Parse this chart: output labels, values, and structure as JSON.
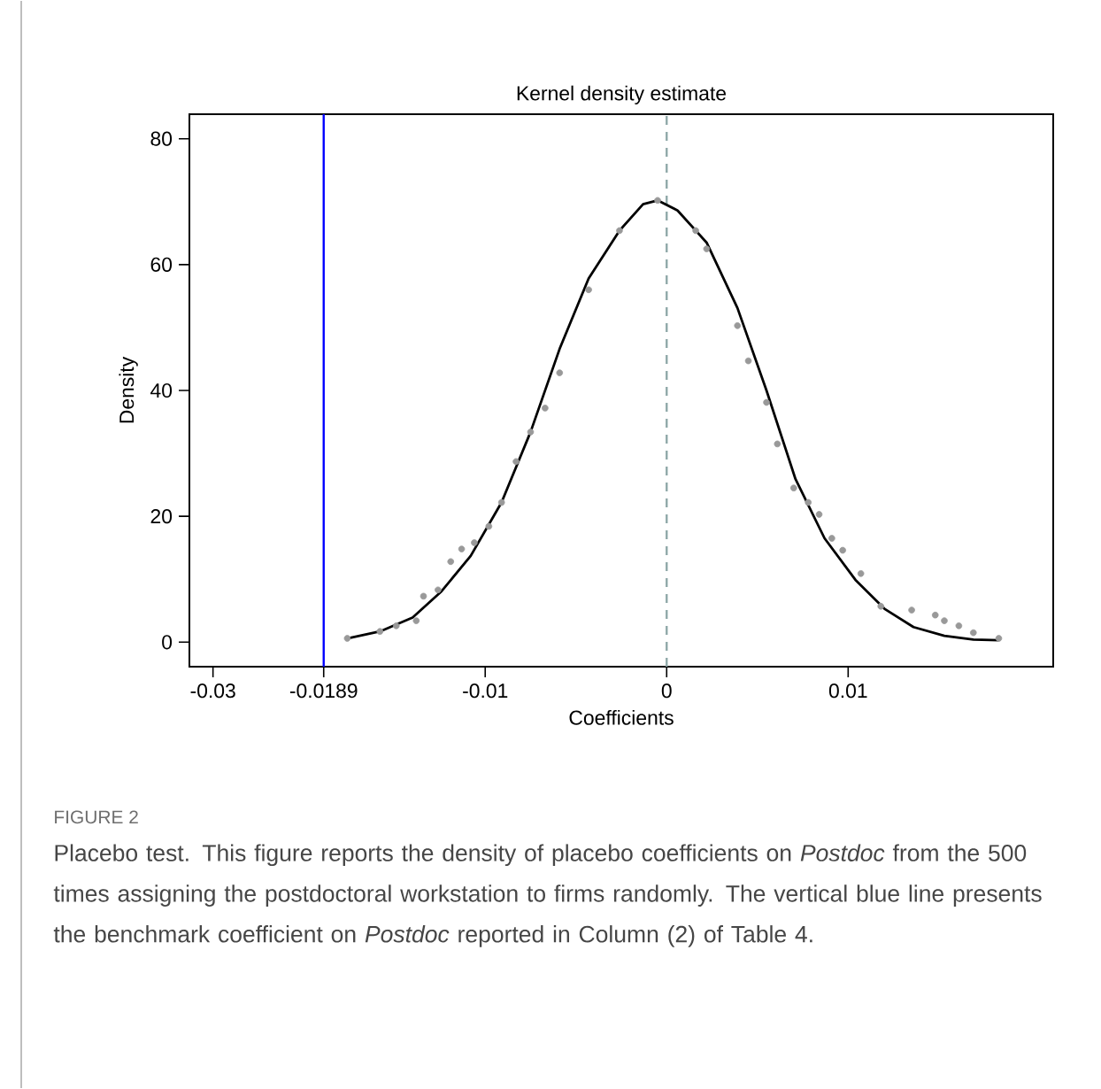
{
  "chart_data": {
    "type": "line",
    "title": "Kernel density estimate",
    "xlabel": "Coefficients",
    "ylabel": "Density",
    "xlim": [
      -0.0263,
      0.0213
    ],
    "ylim": [
      -3.9,
      83.9
    ],
    "xticks": [
      {
        "value": -0.025,
        "label": "-0.03"
      },
      -0.0189,
      -0.01,
      0,
      0.01
    ],
    "yticks": [
      0,
      20,
      40,
      60,
      80
    ],
    "series": [
      {
        "color": "#000000",
        "marker": "none",
        "x": [
          -0.0176,
          -0.0158,
          -0.014,
          -0.0124,
          -0.0108,
          -0.0091,
          -0.0075,
          -0.0059,
          -0.0043,
          -0.0026,
          -0.0013,
          -0.0005,
          0.0006,
          0.0022,
          0.0039,
          0.0055,
          0.0071,
          0.0087,
          0.0104,
          0.012,
          0.0136,
          0.0153,
          0.0169,
          0.0183
        ],
        "values": [
          0.6,
          1.7,
          3.9,
          8.1,
          13.7,
          22.2,
          33.4,
          46.6,
          57.8,
          65.4,
          69.6,
          70.2,
          68.6,
          63.5,
          53.1,
          40.0,
          25.9,
          16.5,
          9.9,
          5.3,
          2.4,
          1.0,
          0.4,
          0.3
        ]
      },
      {
        "type": "scatter",
        "color": "#999999",
        "marker": "circle",
        "x": [
          -0.0176,
          -0.0158,
          -0.0149,
          -0.0138,
          -0.0134,
          -0.0126,
          -0.0119,
          -0.0113,
          -0.0106,
          -0.0098,
          -0.0091,
          -0.0083,
          -0.0075,
          -0.0067,
          -0.0059,
          -0.0043,
          -0.0026,
          -0.0005,
          0.0016,
          0.0022,
          0.0039,
          0.0045,
          0.0055,
          0.0061,
          0.007,
          0.0078,
          0.0084,
          0.0091,
          0.0097,
          0.0107,
          0.0118,
          0.0135,
          0.0148,
          0.0153,
          0.0161,
          0.0169,
          0.0183
        ],
        "values": [
          0.6,
          1.7,
          2.6,
          3.4,
          7.3,
          8.3,
          12.8,
          14.8,
          15.8,
          18.4,
          22.2,
          28.7,
          33.4,
          37.2,
          42.8,
          56.0,
          65.4,
          70.2,
          65.4,
          62.5,
          50.3,
          44.7,
          38.1,
          31.5,
          24.5,
          22.2,
          20.3,
          16.5,
          14.6,
          10.9,
          5.7,
          5.1,
          4.3,
          3.4,
          2.6,
          1.5,
          0.6
        ]
      }
    ],
    "ref_lines": [
      {
        "axis": "x",
        "value": -0.0189,
        "color": "#0000ff",
        "line_style": "solid"
      },
      {
        "axis": "x",
        "value": 0,
        "color": "#8fa8a8",
        "line_style": "dashed"
      }
    ],
    "annotations": [
      "FIGURE 2",
      "Placebo test. This figure reports the density of placebo coefficients on *Postdoc* from the 500 times assigning the postdoctoral workstation to firms randomly. The vertical blue line presents the benchmark coefficient on *Postdoc* reported in Column (2) of Table 4."
    ]
  }
}
